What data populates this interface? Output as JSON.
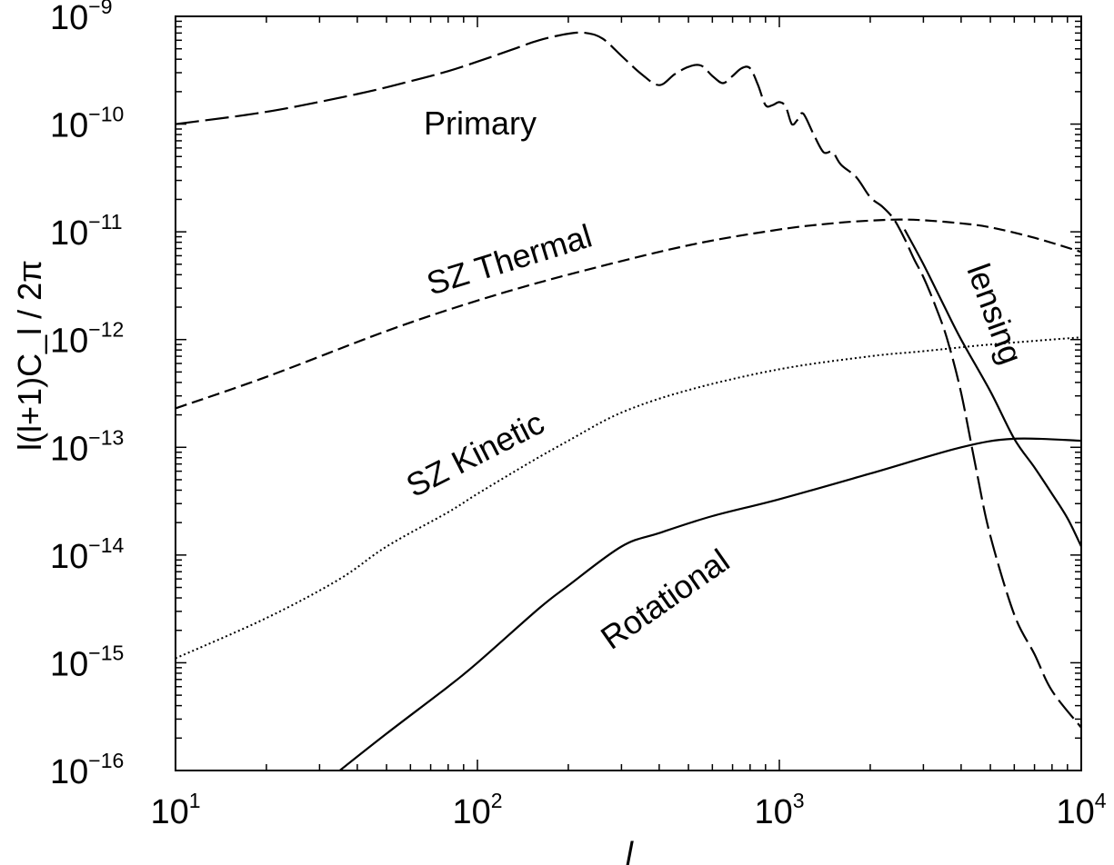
{
  "chart_data": {
    "type": "line",
    "title": "",
    "xlabel": "l",
    "ylabel": "l(l+1)C_l / 2π",
    "x_scale": "log",
    "y_scale": "log",
    "xlim": [
      10,
      10000
    ],
    "ylim": [
      1e-16,
      1e-09
    ],
    "grid": false,
    "legend": "none",
    "x_ticks": [
      {
        "base": "10",
        "exp": "1"
      },
      {
        "base": "10",
        "exp": "2"
      },
      {
        "base": "10",
        "exp": "3"
      },
      {
        "base": "10",
        "exp": "4"
      }
    ],
    "y_ticks": [
      {
        "base": "10",
        "exp": "−9"
      },
      {
        "base": "10",
        "exp": "−10"
      },
      {
        "base": "10",
        "exp": "−11"
      },
      {
        "base": "10",
        "exp": "−12"
      },
      {
        "base": "10",
        "exp": "−13"
      },
      {
        "base": "10",
        "exp": "−14"
      },
      {
        "base": "10",
        "exp": "−15"
      },
      {
        "base": "10",
        "exp": "−16"
      }
    ],
    "series": [
      {
        "name": "Primary",
        "style": "long-dash",
        "x": [
          10,
          20,
          40,
          60,
          80,
          100,
          130,
          160,
          200,
          230,
          260,
          300,
          350,
          400,
          450,
          500,
          550,
          600,
          650,
          700,
          750,
          800,
          850,
          900,
          950,
          1000,
          1050,
          1100,
          1150,
          1200,
          1300,
          1400,
          1500,
          1600,
          1800,
          2000,
          2200,
          2400,
          2600,
          2800,
          3000,
          3300,
          3600,
          4000,
          4500,
          5000,
          6000,
          7000,
          8000,
          10000
        ],
        "y": [
          1e-10,
          1.3e-10,
          1.9e-10,
          2.5e-10,
          3.1e-10,
          3.8e-10,
          4.9e-10,
          6e-10,
          6.9e-10,
          7e-10,
          6.2e-10,
          4.3e-10,
          2.9e-10,
          2.3e-10,
          2.9e-10,
          3.4e-10,
          3.5e-10,
          2.8e-10,
          2.4e-10,
          2.8e-10,
          3.3e-10,
          3.3e-10,
          2.3e-10,
          1.5e-10,
          1.5e-10,
          1.6e-10,
          1.45e-10,
          1e-10,
          1.1e-10,
          1.25e-10,
          8e-11,
          5.5e-11,
          5.5e-11,
          4.2e-11,
          3.2e-11,
          2.1e-11,
          1.7e-11,
          1.3e-11,
          8.6e-12,
          5.5e-12,
          3.8e-12,
          2e-12,
          1e-12,
          3.2e-13,
          6e-14,
          1.5e-14,
          2.8e-15,
          1.2e-15,
          5.5e-16,
          2.5e-16
        ]
      },
      {
        "name": "lensing",
        "style": "solid",
        "x": [
          2600,
          3000,
          3500,
          4000,
          5000,
          6000,
          7000,
          8000,
          9000,
          10000
        ],
        "y": [
          1.05e-11,
          5e-12,
          2.1e-12,
          1e-12,
          3.3e-13,
          1.2e-13,
          6.5e-14,
          3.7e-14,
          2.2e-14,
          1.2e-14
        ]
      },
      {
        "name": "SZ Thermal",
        "style": "dash",
        "x": [
          10,
          20,
          50,
          100,
          200,
          500,
          1000,
          1500,
          2000,
          2500,
          3000,
          4000,
          5000,
          7000,
          10000
        ],
        "y": [
          2.3e-13,
          4.5e-13,
          1.2e-12,
          2.3e-12,
          4e-12,
          7.5e-12,
          1.05e-11,
          1.2e-11,
          1.27e-11,
          1.3e-11,
          1.28e-11,
          1.2e-11,
          1.1e-11,
          8.8e-12,
          6.5e-12
        ]
      },
      {
        "name": "SZ Kinetic",
        "style": "dotted",
        "x": [
          10,
          20,
          35,
          50,
          80,
          100,
          150,
          200,
          300,
          500,
          1000,
          2000,
          3000,
          5000,
          10000
        ],
        "y": [
          1.1e-15,
          2.6e-15,
          6e-15,
          1.2e-14,
          2.5e-14,
          3.7e-14,
          7.3e-14,
          1.15e-13,
          2.1e-13,
          3.4e-13,
          5.3e-13,
          7e-13,
          7.8e-13,
          9e-13,
          1.05e-12
        ]
      },
      {
        "name": "Rotational",
        "style": "solid",
        "x": [
          35,
          50,
          80,
          100,
          160,
          200,
          300,
          400,
          600,
          1000,
          2000,
          4000,
          6000,
          10000
        ],
        "y": [
          1e-16,
          2.2e-16,
          6e-16,
          1e-15,
          3.2e-15,
          5.2e-15,
          1.2e-14,
          1.6e-14,
          2.3e-14,
          3.3e-14,
          5.7e-14,
          1e-13,
          1.2e-13,
          1.15e-13
        ]
      }
    ]
  }
}
